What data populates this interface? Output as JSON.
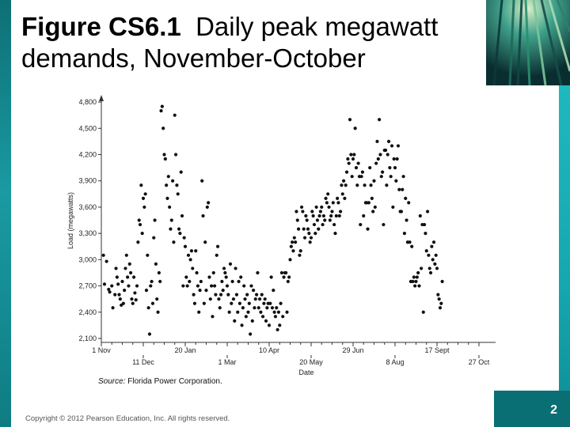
{
  "slide": {
    "title_bold": "Figure CS6.1",
    "title_rest": "Daily peak megawatt demands, November-October",
    "copyright": "Copyright © 2012 Pearson Education, Inc. All rights reserved.",
    "page_number": "2",
    "source_label": "Source:",
    "source_text": " Florida Power Corporation.",
    "colors": {
      "teal_dark": "#0a6f74",
      "teal_light": "#1fb8bf"
    }
  },
  "chart_data": {
    "type": "scatter",
    "xlabel": "Date",
    "ylabel": "Load (megawatts)",
    "x_range_days": [
      0,
      360
    ],
    "ylim": [
      2100,
      4900
    ],
    "y_ticks": [
      2100,
      2400,
      2700,
      3000,
      3300,
      3600,
      3900,
      4200,
      4500,
      4800
    ],
    "y_tick_labels": [
      "2,100",
      "2,400",
      "2,700",
      "3,000",
      "3,300",
      "3,600",
      "3,900",
      "4,200",
      "4,500",
      "4,800"
    ],
    "x_ticks_upper": [
      {
        "label": "1 Nov",
        "day": 0
      },
      {
        "label": "20 Jan",
        "day": 80
      },
      {
        "label": "10 Apr",
        "day": 160
      },
      {
        "label": "29 Jun",
        "day": 240
      },
      {
        "label": "17 Sept",
        "day": 320
      }
    ],
    "x_ticks_lower": [
      {
        "label": "11 Dec",
        "day": 40
      },
      {
        "label": "1 Mar",
        "day": 120
      },
      {
        "label": "20 May",
        "day": 200
      },
      {
        "label": "8 Aug",
        "day": 280
      },
      {
        "label": "27 Oct",
        "day": 360
      }
    ],
    "points": [
      [
        2,
        3050
      ],
      [
        3,
        2720
      ],
      [
        5,
        2980
      ],
      [
        7,
        2660
      ],
      [
        8,
        2630
      ],
      [
        10,
        2700
      ],
      [
        11,
        2450
      ],
      [
        13,
        2600
      ],
      [
        14,
        2900
      ],
      [
        15,
        2800
      ],
      [
        16,
        2720
      ],
      [
        17,
        2600
      ],
      [
        18,
        2550
      ],
      [
        19,
        2480
      ],
      [
        20,
        2750
      ],
      [
        21,
        2500
      ],
      [
        22,
        2650
      ],
      [
        23,
        2900
      ],
      [
        24,
        3050
      ],
      [
        25,
        2800
      ],
      [
        26,
        2700
      ],
      [
        27,
        2950
      ],
      [
        28,
        2850
      ],
      [
        29,
        2550
      ],
      [
        30,
        2500
      ],
      [
        31,
        2800
      ],
      [
        32,
        2620
      ],
      [
        33,
        2540
      ],
      [
        34,
        2700
      ],
      [
        35,
        3200
      ],
      [
        36,
        3450
      ],
      [
        37,
        3400
      ],
      [
        38,
        3850
      ],
      [
        39,
        3300
      ],
      [
        40,
        3700
      ],
      [
        41,
        3600
      ],
      [
        42,
        3750
      ],
      [
        43,
        2650
      ],
      [
        44,
        3050
      ],
      [
        45,
        2450
      ],
      [
        46,
        2150
      ],
      [
        47,
        2700
      ],
      [
        48,
        2750
      ],
      [
        49,
        2500
      ],
      [
        50,
        3250
      ],
      [
        51,
        3450
      ],
      [
        52,
        2950
      ],
      [
        53,
        2550
      ],
      [
        54,
        2400
      ],
      [
        55,
        2850
      ],
      [
        56,
        2750
      ],
      [
        57,
        4700
      ],
      [
        58,
        4750
      ],
      [
        59,
        4500
      ],
      [
        60,
        4200
      ],
      [
        61,
        4150
      ],
      [
        62,
        3850
      ],
      [
        63,
        3700
      ],
      [
        64,
        3950
      ],
      [
        65,
        3600
      ],
      [
        66,
        3350
      ],
      [
        67,
        3450
      ],
      [
        68,
        3900
      ],
      [
        69,
        3200
      ],
      [
        70,
        4650
      ],
      [
        71,
        4200
      ],
      [
        72,
        3850
      ],
      [
        73,
        3750
      ],
      [
        74,
        3350
      ],
      [
        75,
        3300
      ],
      [
        76,
        4000
      ],
      [
        77,
        3500
      ],
      [
        78,
        2700
      ],
      [
        79,
        3250
      ],
      [
        80,
        3150
      ],
      [
        81,
        2800
      ],
      [
        82,
        2700
      ],
      [
        83,
        3050
      ],
      [
        84,
        2750
      ],
      [
        85,
        3000
      ],
      [
        86,
        3100
      ],
      [
        87,
        2900
      ],
      [
        88,
        2600
      ],
      [
        89,
        2500
      ],
      [
        90,
        3100
      ],
      [
        91,
        2850
      ],
      [
        92,
        2700
      ],
      [
        93,
        2400
      ],
      [
        94,
        2650
      ],
      [
        95,
        2750
      ],
      [
        96,
        3900
      ],
      [
        97,
        3500
      ],
      [
        98,
        2500
      ],
      [
        99,
        3200
      ],
      [
        100,
        2650
      ],
      [
        101,
        3600
      ],
      [
        102,
        3650
      ],
      [
        103,
        2800
      ],
      [
        104,
        2550
      ],
      [
        105,
        2700
      ],
      [
        106,
        2350
      ],
      [
        107,
        2850
      ],
      [
        108,
        2700
      ],
      [
        109,
        2600
      ],
      [
        110,
        3050
      ],
      [
        111,
        3150
      ],
      [
        112,
        2550
      ],
      [
        113,
        2450
      ],
      [
        114,
        2600
      ],
      [
        115,
        2750
      ],
      [
        116,
        2650
      ],
      [
        117,
        2900
      ],
      [
        118,
        2850
      ],
      [
        119,
        2800
      ],
      [
        120,
        2700
      ],
      [
        121,
        2600
      ],
      [
        122,
        2400
      ],
      [
        123,
        2950
      ],
      [
        124,
        2500
      ],
      [
        125,
        2750
      ],
      [
        126,
        2550
      ],
      [
        127,
        2300
      ],
      [
        128,
        2900
      ],
      [
        129,
        2600
      ],
      [
        130,
        2400
      ],
      [
        131,
        2750
      ],
      [
        132,
        2500
      ],
      [
        133,
        2800
      ],
      [
        134,
        2250
      ],
      [
        135,
        2450
      ],
      [
        136,
        2700
      ],
      [
        137,
        2550
      ],
      [
        138,
        2350
      ],
      [
        139,
        2600
      ],
      [
        140,
        2400
      ],
      [
        141,
        2500
      ],
      [
        142,
        2150
      ],
      [
        143,
        2700
      ],
      [
        144,
        2300
      ],
      [
        145,
        2650
      ],
      [
        146,
        2450
      ],
      [
        147,
        2550
      ],
      [
        148,
        2600
      ],
      [
        149,
        2850
      ],
      [
        150,
        2450
      ],
      [
        151,
        2550
      ],
      [
        152,
        2400
      ],
      [
        153,
        2600
      ],
      [
        154,
        2350
      ],
      [
        155,
        2500
      ],
      [
        156,
        2550
      ],
      [
        157,
        2300
      ],
      [
        158,
        2450
      ],
      [
        159,
        2500
      ],
      [
        160,
        2250
      ],
      [
        161,
        2500
      ],
      [
        162,
        2800
      ],
      [
        163,
        2450
      ],
      [
        164,
        2650
      ],
      [
        165,
        2400
      ],
      [
        166,
        2350
      ],
      [
        167,
        2450
      ],
      [
        168,
        2200
      ],
      [
        169,
        2400
      ],
      [
        170,
        2250
      ],
      [
        171,
        2500
      ],
      [
        172,
        2850
      ],
      [
        173,
        2350
      ],
      [
        174,
        2800
      ],
      [
        175,
        2850
      ],
      [
        176,
        2850
      ],
      [
        177,
        2400
      ],
      [
        178,
        2750
      ],
      [
        179,
        2800
      ],
      [
        180,
        3000
      ],
      [
        181,
        3150
      ],
      [
        182,
        3200
      ],
      [
        183,
        3100
      ],
      [
        184,
        3250
      ],
      [
        185,
        3200
      ],
      [
        186,
        3550
      ],
      [
        187,
        3450
      ],
      [
        188,
        3350
      ],
      [
        189,
        3050
      ],
      [
        190,
        3100
      ],
      [
        191,
        3600
      ],
      [
        192,
        3550
      ],
      [
        193,
        3350
      ],
      [
        194,
        3250
      ],
      [
        195,
        3500
      ],
      [
        196,
        3450
      ],
      [
        197,
        3350
      ],
      [
        198,
        3300
      ],
      [
        199,
        3200
      ],
      [
        200,
        3250
      ],
      [
        201,
        3550
      ],
      [
        202,
        3500
      ],
      [
        203,
        3400
      ],
      [
        204,
        3300
      ],
      [
        205,
        3600
      ],
      [
        206,
        3450
      ],
      [
        207,
        3350
      ],
      [
        208,
        3500
      ],
      [
        209,
        3550
      ],
      [
        210,
        3600
      ],
      [
        211,
        3400
      ],
      [
        212,
        3500
      ],
      [
        213,
        3450
      ],
      [
        214,
        3700
      ],
      [
        215,
        3650
      ],
      [
        216,
        3750
      ],
      [
        217,
        3600
      ],
      [
        218,
        3450
      ],
      [
        219,
        3500
      ],
      [
        220,
        3550
      ],
      [
        221,
        3650
      ],
      [
        222,
        3400
      ],
      [
        223,
        3300
      ],
      [
        224,
        3500
      ],
      [
        225,
        3700
      ],
      [
        226,
        3650
      ],
      [
        227,
        3500
      ],
      [
        228,
        3550
      ],
      [
        229,
        3850
      ],
      [
        230,
        3750
      ],
      [
        231,
        3900
      ],
      [
        232,
        3700
      ],
      [
        233,
        3850
      ],
      [
        234,
        4000
      ],
      [
        235,
        4150
      ],
      [
        236,
        4100
      ],
      [
        237,
        4600
      ],
      [
        238,
        4200
      ],
      [
        239,
        3950
      ],
      [
        240,
        4150
      ],
      [
        241,
        4200
      ],
      [
        242,
        4500
      ],
      [
        243,
        4050
      ],
      [
        244,
        3850
      ],
      [
        245,
        4100
      ],
      [
        246,
        3950
      ],
      [
        247,
        3400
      ],
      [
        248,
        3950
      ],
      [
        249,
        4000
      ],
      [
        250,
        3500
      ],
      [
        251,
        3850
      ],
      [
        252,
        3650
      ],
      [
        253,
        3650
      ],
      [
        254,
        3350
      ],
      [
        255,
        3650
      ],
      [
        256,
        4050
      ],
      [
        257,
        3850
      ],
      [
        258,
        3700
      ],
      [
        259,
        3550
      ],
      [
        260,
        3900
      ],
      [
        261,
        3600
      ],
      [
        262,
        4100
      ],
      [
        263,
        4350
      ],
      [
        264,
        4150
      ],
      [
        265,
        4600
      ],
      [
        266,
        4200
      ],
      [
        267,
        3950
      ],
      [
        268,
        4000
      ],
      [
        269,
        3400
      ],
      [
        270,
        4250
      ],
      [
        271,
        4250
      ],
      [
        272,
        3850
      ],
      [
        273,
        4200
      ],
      [
        274,
        4350
      ],
      [
        275,
        4050
      ],
      [
        276,
        3950
      ],
      [
        277,
        4300
      ],
      [
        278,
        3600
      ],
      [
        279,
        4150
      ],
      [
        280,
        4050
      ],
      [
        281,
        3900
      ],
      [
        282,
        4150
      ],
      [
        283,
        4300
      ],
      [
        284,
        3800
      ],
      [
        285,
        3550
      ],
      [
        286,
        3550
      ],
      [
        287,
        3800
      ],
      [
        288,
        3950
      ],
      [
        289,
        3300
      ],
      [
        290,
        3700
      ],
      [
        291,
        3450
      ],
      [
        292,
        3200
      ],
      [
        293,
        3650
      ],
      [
        294,
        3200
      ],
      [
        295,
        2750
      ],
      [
        296,
        3150
      ],
      [
        297,
        2750
      ],
      [
        298,
        2800
      ],
      [
        299,
        2700
      ],
      [
        300,
        2750
      ],
      [
        301,
        2800
      ],
      [
        302,
        2850
      ],
      [
        303,
        2700
      ],
      [
        304,
        3500
      ],
      [
        305,
        2900
      ],
      [
        306,
        3400
      ],
      [
        307,
        2400
      ],
      [
        308,
        3400
      ],
      [
        309,
        3300
      ],
      [
        310,
        3100
      ],
      [
        311,
        3550
      ],
      [
        312,
        3050
      ],
      [
        313,
        2900
      ],
      [
        314,
        2850
      ],
      [
        315,
        3150
      ],
      [
        316,
        3000
      ],
      [
        317,
        3200
      ],
      [
        318,
        2950
      ],
      [
        319,
        3050
      ],
      [
        320,
        2900
      ],
      [
        321,
        2600
      ],
      [
        322,
        2550
      ],
      [
        323,
        2450
      ],
      [
        324,
        2500
      ],
      [
        325,
        2750
      ]
    ]
  }
}
